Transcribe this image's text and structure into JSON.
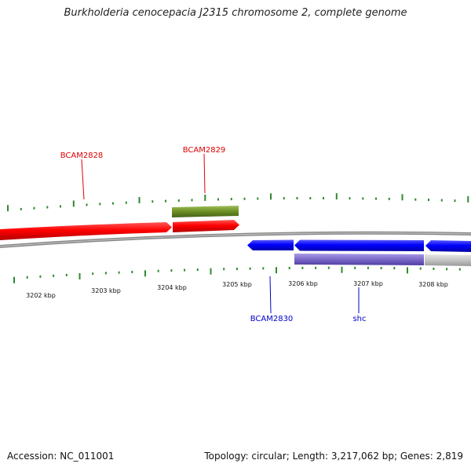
{
  "title": "Burkholderia cenocepacia J2315 chromosome 2, complete genome",
  "axis": {
    "labels": [
      "3202 kbp",
      "3203 kbp",
      "3204 kbp",
      "3205 kbp",
      "3206 kbp",
      "3207 kbp",
      "3208 kbp"
    ]
  },
  "genes": {
    "g1": {
      "label": "BCAM2828",
      "color": "#dd0000"
    },
    "g2": {
      "label": "BCAM2829",
      "color": "#dd0000"
    },
    "g3": {
      "label": "BCAM2830",
      "color": "#0000cc"
    },
    "g4": {
      "label": "shc",
      "color": "#0000cc"
    }
  },
  "colors": {
    "forward": "#ff0000",
    "reverse": "#0000ff",
    "cds_green": "#6b8e23",
    "cds_purple": "#7b68c8",
    "backbone": "#888888",
    "ticks": "#2e8b2e"
  },
  "footer": {
    "accession": "Accession: NC_011001",
    "summary": "Topology: circular; Length: 3,217,062 bp; Genes: 2,819"
  }
}
